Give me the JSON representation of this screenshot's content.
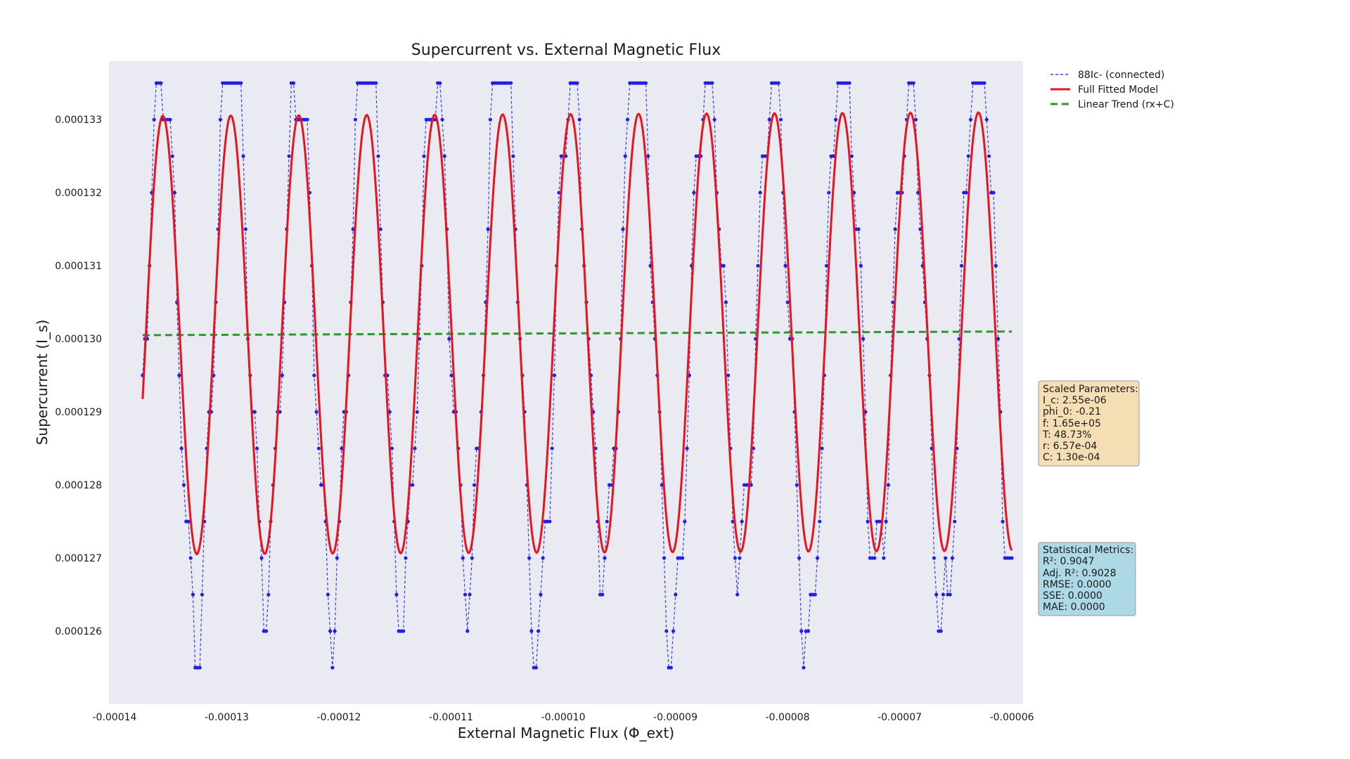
{
  "chart_data": {
    "type": "line",
    "title": "Supercurrent vs. External Magnetic Flux",
    "xlabel": "External Magnetic Flux (Φ_ext)",
    "ylabel": "Supercurrent (I_s)",
    "xlim": [
      -0.0001405,
      -5.9e-05
    ],
    "ylim": [
      0.000125,
      0.0001338
    ],
    "xticks": [
      -0.00014,
      -0.00013,
      -0.00012,
      -0.00011,
      -0.0001,
      -9e-05,
      -8e-05,
      -7e-05,
      -6e-05
    ],
    "xtick_labels": [
      "-0.00014",
      "-0.00013",
      "-0.00012",
      "-0.00011",
      "-0.00010",
      "-0.00009",
      "-0.00008",
      "-0.00007",
      "-0.00006"
    ],
    "yticks": [
      0.000126,
      0.000127,
      0.000128,
      0.000129,
      0.00013,
      0.000131,
      0.000132,
      0.000133
    ],
    "ytick_labels": [
      "0.000126",
      "0.000127",
      "0.000128",
      "0.000129",
      "0.000130",
      "0.000131",
      "0.000132",
      "0.000133"
    ],
    "grid": false,
    "background": "#eaeaf2",
    "legend_position": "outside-top-right",
    "series": [
      {
        "name": "88Ic- (connected)",
        "style": "dashed-markers",
        "color": "#1f1fe6",
        "x_start": -0.0001375,
        "x_end": -6e-05,
        "points": 381,
        "amplitude": 3.8e-06,
        "offset": 0.0001302,
        "clip_max": 0.0001335,
        "clip_min": 0.0001255,
        "quantum": 5e-07,
        "period": 6.06e-06,
        "phase_peak_x": -0.0001357
      },
      {
        "name": "Full Fitted Model",
        "style": "solid",
        "color": "#e8141b",
        "x_start": -0.0001375,
        "x_end": -6e-05,
        "amplitude": 3e-06,
        "period": 6.06e-06,
        "phase_peak_x": -0.0001357
      },
      {
        "name": "Linear Trend (rx+C)",
        "style": "dashed",
        "color": "#2a9a2a",
        "x": [
          -0.0001375,
          -6e-05
        ],
        "y": [
          0.00013005,
          0.0001301
        ]
      }
    ],
    "annotations": [
      {
        "title": "Scaled Parameters:",
        "lines": [
          "I_c: 2.55e-06",
          "phi_0: -0.21",
          "f: 1.65e+05",
          "T: 48.73%",
          "r: 6.57e-04",
          "C: 1.30e-04"
        ],
        "background": "#f5deb3"
      },
      {
        "title": "Statistical Metrics:",
        "lines": [
          "R²: 0.9047",
          "Adj. R²: 0.9028",
          "RMSE: 0.0000",
          "SSE: 0.0000",
          "MAE: 0.0000"
        ],
        "background": "#add8e6"
      }
    ]
  }
}
